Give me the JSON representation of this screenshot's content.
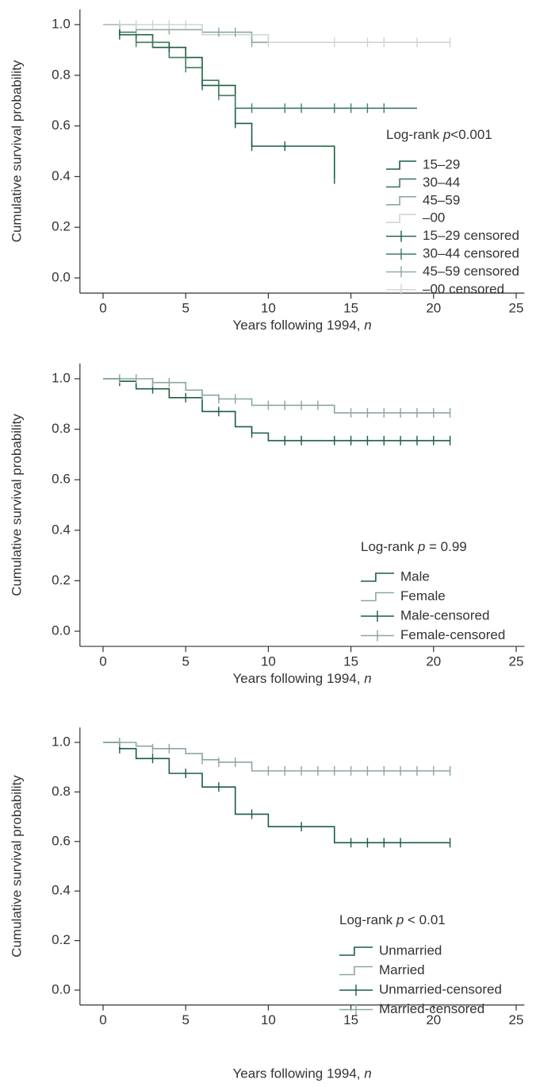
{
  "chart_data": [
    {
      "type": "step",
      "ylabel": "Cumulative survival probability",
      "xlabel": [
        "Years following 1994, ",
        "n"
      ],
      "annotation": [
        "Log-rank ",
        "p",
        "<0.001"
      ],
      "xlim": [
        -1.4,
        25.5
      ],
      "ylim": [
        -0.06,
        1.06
      ],
      "xticks": [
        0,
        5,
        10,
        15,
        20,
        25
      ],
      "yticks": [
        {
          "value": 0,
          "label": "0.0"
        },
        0.2,
        0.4,
        0.6,
        0.8,
        {
          "value": 1,
          "label": "1.0"
        }
      ],
      "series": [
        {
          "name": "15–29",
          "kind": "step",
          "color": "#1b5e3f",
          "x": [
            0,
            1,
            3,
            5,
            6,
            8,
            9,
            14
          ],
          "values": [
            1,
            0.96,
            0.91,
            0.87,
            0.76,
            0.61,
            0.52,
            0.39
          ]
        },
        {
          "name": "30–44",
          "kind": "step",
          "color": "#3d7d5f",
          "x": [
            0,
            1,
            2,
            4,
            5,
            6,
            7,
            8,
            19
          ],
          "values": [
            1,
            0.97,
            0.93,
            0.87,
            0.83,
            0.78,
            0.72,
            0.67,
            0.67
          ]
        },
        {
          "name": "45–59",
          "kind": "step",
          "color": "#8aa99a",
          "x": [
            0,
            2,
            6,
            9,
            10
          ],
          "values": [
            1,
            0.98,
            0.97,
            0.93,
            0.93
          ]
        },
        {
          "name": "–00",
          "kind": "step",
          "color": "#cdd5d1",
          "x": [
            0,
            6,
            10,
            21
          ],
          "values": [
            1,
            0.96,
            0.93,
            0.93
          ]
        },
        {
          "name": "15–29 censored",
          "kind": "censored",
          "color": "#1b5e3f",
          "x": [
            1,
            2,
            4,
            6,
            8,
            9,
            11,
            14
          ],
          "values": [
            0.96,
            0.96,
            0.91,
            0.76,
            0.61,
            0.52,
            0.52,
            0.39
          ]
        },
        {
          "name": "30–44 censored",
          "kind": "censored",
          "color": "#3d7d5f",
          "x": [
            2,
            3,
            5,
            7,
            9,
            11,
            12,
            14,
            15,
            16,
            17
          ],
          "values": [
            0.93,
            0.93,
            0.83,
            0.72,
            0.67,
            0.67,
            0.67,
            0.67,
            0.67,
            0.67,
            0.67
          ]
        },
        {
          "name": "45–59 censored",
          "kind": "censored",
          "color": "#8aa99a",
          "x": [
            2,
            4,
            7,
            8,
            9
          ],
          "values": [
            0.98,
            0.98,
            0.97,
            0.97,
            0.93
          ]
        },
        {
          "name": "–00 censored",
          "kind": "censored",
          "color": "#cdd5d1",
          "x": [
            1,
            2,
            3,
            4,
            5,
            10,
            14,
            16,
            17,
            19,
            21
          ],
          "values": [
            1,
            1,
            1,
            1,
            1,
            0.93,
            0.93,
            0.93,
            0.93,
            0.93,
            0.93
          ]
        }
      ]
    },
    {
      "type": "step",
      "ylabel": "Cumulative survival probability",
      "xlabel": [
        "Years following 1994, ",
        "n"
      ],
      "annotation": [
        "Log-rank ",
        "p",
        " = 0.99"
      ],
      "xlim": [
        -1.4,
        25.5
      ],
      "ylim": [
        -0.06,
        1.06
      ],
      "xticks": [
        0,
        5,
        10,
        15,
        20,
        25
      ],
      "yticks": [
        {
          "value": 0,
          "label": "0.0"
        },
        0.2,
        0.4,
        0.6,
        0.8,
        {
          "value": 1,
          "label": "1.0"
        }
      ],
      "series": [
        {
          "name": "Male",
          "kind": "step",
          "color": "#1b5e3f",
          "x": [
            0,
            1,
            2,
            4,
            6,
            8,
            9,
            10,
            21
          ],
          "values": [
            1,
            0.99,
            0.96,
            0.925,
            0.87,
            0.81,
            0.785,
            0.755,
            0.755
          ]
        },
        {
          "name": "Female",
          "kind": "step",
          "color": "#8aa99a",
          "x": [
            0,
            1,
            3,
            5,
            6,
            7,
            9,
            14,
            21
          ],
          "values": [
            1,
            1,
            0.985,
            0.955,
            0.935,
            0.92,
            0.895,
            0.865,
            0.865
          ]
        },
        {
          "name": "Male-censored",
          "kind": "censored",
          "color": "#1b5e3f",
          "x": [
            1,
            3,
            5,
            7,
            9,
            11,
            12,
            14,
            15,
            16,
            17,
            18,
            19,
            20,
            21
          ],
          "values": [
            0.99,
            0.96,
            0.925,
            0.87,
            0.785,
            0.755,
            0.755,
            0.755,
            0.755,
            0.755,
            0.755,
            0.755,
            0.755,
            0.755,
            0.755
          ]
        },
        {
          "name": "Female-censored",
          "kind": "censored",
          "color": "#8aa99a",
          "x": [
            1,
            2,
            3,
            4,
            6,
            7,
            8,
            10,
            11,
            12,
            13,
            15,
            16,
            17,
            18,
            19,
            20,
            21
          ],
          "values": [
            1,
            1,
            0.985,
            0.985,
            0.935,
            0.92,
            0.92,
            0.895,
            0.895,
            0.895,
            0.895,
            0.865,
            0.865,
            0.865,
            0.865,
            0.865,
            0.865,
            0.865
          ]
        }
      ]
    },
    {
      "type": "step",
      "ylabel": "Cumulative survival probability",
      "xlabel": [
        "Years following 1994, ",
        "n"
      ],
      "annotation": [
        "Log-rank ",
        "p",
        " < 0.01"
      ],
      "xlim": [
        -1.4,
        25.5
      ],
      "ylim": [
        -0.06,
        1.06
      ],
      "xticks": [
        0,
        5,
        10,
        15,
        20,
        25
      ],
      "yticks": [
        {
          "value": 0,
          "label": "0.0"
        },
        0.2,
        0.4,
        0.6,
        0.8,
        {
          "value": 1,
          "label": "1.0"
        }
      ],
      "series": [
        {
          "name": "Unmarried",
          "kind": "step",
          "color": "#1b5e3f",
          "x": [
            0,
            1,
            2,
            4,
            6,
            8,
            10,
            14,
            21
          ],
          "values": [
            1,
            0.975,
            0.935,
            0.875,
            0.82,
            0.71,
            0.66,
            0.595,
            0.595
          ]
        },
        {
          "name": "Married",
          "kind": "step",
          "color": "#8aa99a",
          "x": [
            0,
            2,
            3,
            5,
            6,
            7,
            9,
            21
          ],
          "values": [
            1,
            0.985,
            0.975,
            0.955,
            0.93,
            0.92,
            0.885,
            0.885
          ]
        },
        {
          "name": "Unmarried-censored",
          "kind": "censored",
          "color": "#1b5e3f",
          "x": [
            1,
            3,
            5,
            7,
            9,
            12,
            15,
            16,
            17,
            18,
            21
          ],
          "values": [
            0.975,
            0.935,
            0.875,
            0.82,
            0.71,
            0.66,
            0.595,
            0.595,
            0.595,
            0.595,
            0.595
          ]
        },
        {
          "name": "Married-censored",
          "kind": "censored",
          "color": "#8aa99a",
          "x": [
            1,
            3,
            4,
            6,
            7,
            8,
            10,
            11,
            12,
            13,
            14,
            15,
            16,
            17,
            18,
            19,
            20,
            21
          ],
          "values": [
            1,
            0.975,
            0.975,
            0.93,
            0.92,
            0.92,
            0.885,
            0.885,
            0.885,
            0.885,
            0.885,
            0.885,
            0.885,
            0.885,
            0.885,
            0.885,
            0.885,
            0.885
          ]
        }
      ]
    }
  ]
}
